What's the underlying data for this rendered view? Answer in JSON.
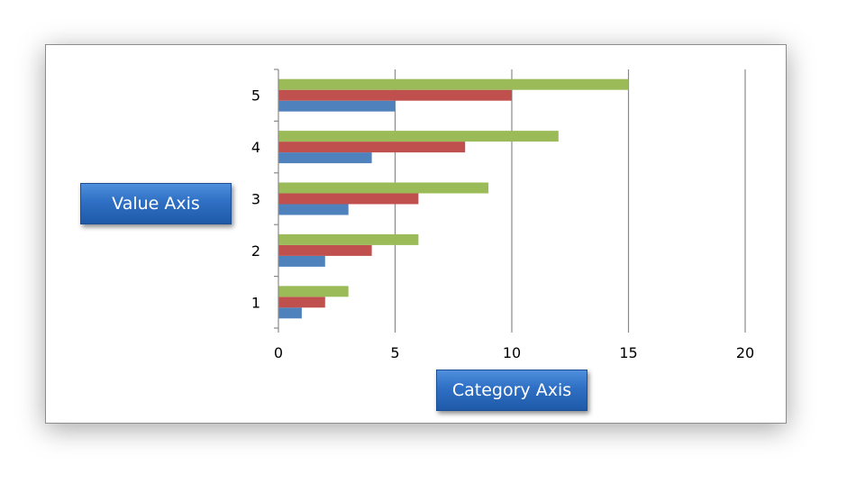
{
  "chart_data": {
    "type": "bar",
    "orientation": "horizontal",
    "categories": [
      "1",
      "2",
      "3",
      "4",
      "5"
    ],
    "series": [
      {
        "values": [
          1,
          2,
          3,
          4,
          5
        ],
        "color": "#4f81bd"
      },
      {
        "values": [
          2,
          4,
          6,
          8,
          10
        ],
        "color": "#c0504d"
      },
      {
        "values": [
          3,
          6,
          9,
          12,
          15
        ],
        "color": "#9bbb59"
      }
    ],
    "xlim": [
      0,
      20
    ],
    "x_ticks": [
      "0",
      "5",
      "10",
      "15",
      "20"
    ],
    "grid": "vertical",
    "legend": "none"
  },
  "callouts": {
    "value_axis": "Value Axis",
    "category_axis": "Category Axis"
  }
}
